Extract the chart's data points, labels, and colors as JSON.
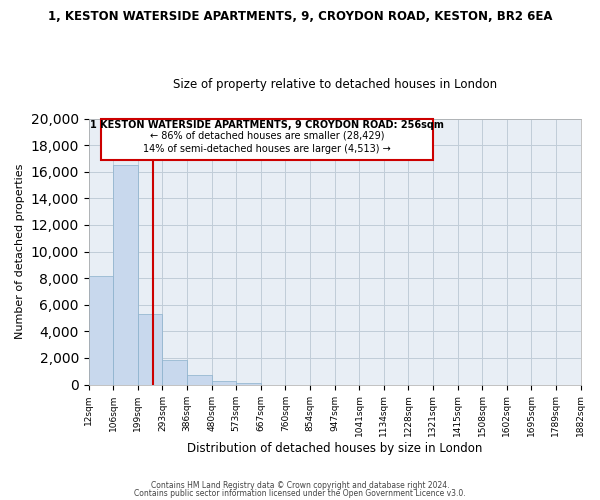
{
  "title": "1, KESTON WATERSIDE APARTMENTS, 9, CROYDON ROAD, KESTON, BR2 6EA",
  "subtitle": "Size of property relative to detached houses in London",
  "xlabel": "Distribution of detached houses by size in London",
  "ylabel": "Number of detached properties",
  "bar_values": [
    8200,
    16500,
    5300,
    1850,
    750,
    300,
    130,
    0,
    0,
    0,
    0,
    0,
    0,
    0,
    0,
    0,
    0,
    0,
    0,
    0
  ],
  "bar_labels": [
    "12sqm",
    "106sqm",
    "199sqm",
    "293sqm",
    "386sqm",
    "480sqm",
    "573sqm",
    "667sqm",
    "760sqm",
    "854sqm",
    "947sqm",
    "1041sqm",
    "1134sqm",
    "1228sqm",
    "1321sqm",
    "1415sqm",
    "1508sqm",
    "1602sqm",
    "1695sqm",
    "1789sqm",
    "1882sqm"
  ],
  "bar_color": "#c8d8ed",
  "vline_color": "#cc0000",
  "vline_x": 2.6,
  "ylim": [
    0,
    20000
  ],
  "yticks": [
    0,
    2000,
    4000,
    6000,
    8000,
    10000,
    12000,
    14000,
    16000,
    18000,
    20000
  ],
  "annotation_title": "1 KESTON WATERSIDE APARTMENTS, 9 CROYDON ROAD: 256sqm",
  "annotation_line1": "← 86% of detached houses are smaller (28,429)",
  "annotation_line2": "14% of semi-detached houses are larger (4,513) →",
  "annotation_box_color": "#cc0000",
  "footer1": "Contains HM Land Registry data © Crown copyright and database right 2024.",
  "footer2": "Contains public sector information licensed under the Open Government Licence v3.0.",
  "background_color": "#ffffff",
  "ax_background_color": "#e8eef5",
  "grid_color": "#c0ccd8"
}
